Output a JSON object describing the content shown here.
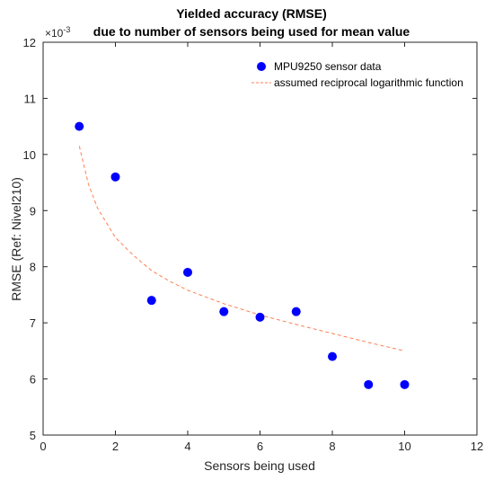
{
  "chart_data": {
    "type": "scatter",
    "title": "Yielded accuracy (RMSE)",
    "subtitle": "due to number of sensors being used for mean value",
    "xlabel": "Sensors being used",
    "ylabel": "RMSE (Ref: Nivel210)",
    "y_multiplier_label": "×10",
    "y_multiplier_exponent": "-3",
    "xlim": [
      0,
      12
    ],
    "ylim": [
      5,
      12
    ],
    "x_ticks": [
      "0",
      "2",
      "4",
      "6",
      "8",
      "10",
      "12"
    ],
    "y_ticks": [
      "5",
      "6",
      "7",
      "8",
      "9",
      "10",
      "11",
      "12"
    ],
    "grid": false,
    "legend_position": "top-right",
    "series": [
      {
        "name": "MPU9250 sensor data",
        "kind": "scatter",
        "color": "#0000ff",
        "x": [
          1,
          2,
          3,
          4,
          5,
          6,
          7,
          8,
          9,
          10
        ],
        "y": [
          10.5,
          9.6,
          7.4,
          7.9,
          7.2,
          7.1,
          7.2,
          6.4,
          5.9,
          5.9
        ]
      },
      {
        "name": "assumed reciprocal logarithmic function",
        "kind": "line",
        "style": "dashed",
        "color": "#ff7f50",
        "x": [
          1,
          1.25,
          1.5,
          2,
          2.5,
          3,
          3.5,
          4,
          5,
          6,
          7,
          8,
          9,
          10
        ],
        "y": [
          10.15,
          9.48,
          9.05,
          8.52,
          8.2,
          7.93,
          7.74,
          7.58,
          7.34,
          7.14,
          6.97,
          6.81,
          6.65,
          6.5
        ]
      }
    ]
  }
}
